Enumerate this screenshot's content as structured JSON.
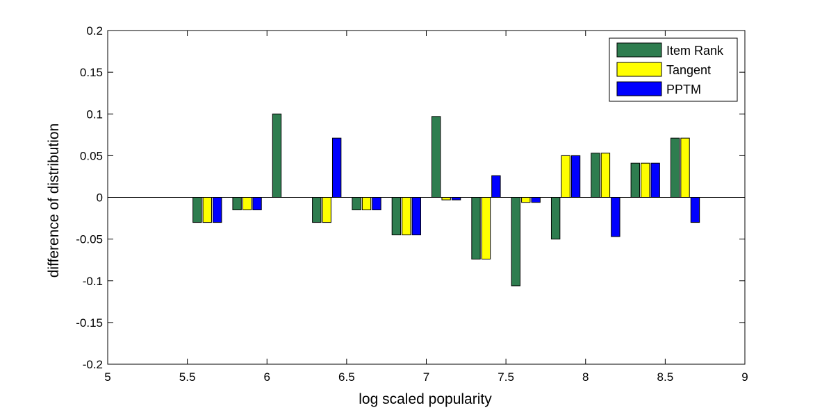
{
  "chart_data": {
    "type": "bar",
    "title": "",
    "xlabel": "log scaled popularity",
    "ylabel": "difference of distribution",
    "xlim": [
      5,
      9
    ],
    "ylim": [
      -0.2,
      0.2
    ],
    "xticks": [
      5,
      5.5,
      6,
      6.5,
      7,
      7.5,
      8,
      8.5,
      9
    ],
    "xtick_labels": [
      "5",
      "5.5",
      "6",
      "6.5",
      "7",
      "7.5",
      "8",
      "8.5",
      "9"
    ],
    "yticks": [
      -0.2,
      -0.15,
      -0.1,
      -0.05,
      0,
      0.05,
      0.1,
      0.15,
      0.2
    ],
    "ytick_labels": [
      "-0.2",
      "-0.15",
      "-0.1",
      "-0.05",
      "0",
      "0.05",
      "0.1",
      "0.15",
      "0.2"
    ],
    "grid": false,
    "legend_position": "top-right",
    "x": [
      5.625,
      5.875,
      6.125,
      6.375,
      6.625,
      6.875,
      7.125,
      7.375,
      7.625,
      7.875,
      8.125,
      8.375,
      8.625
    ],
    "series": [
      {
        "name": "Item Rank",
        "color": "#2e7d4f",
        "values": [
          -0.03,
          -0.015,
          0.1,
          -0.03,
          -0.015,
          -0.045,
          0.097,
          -0.074,
          -0.106,
          -0.05,
          0.053,
          0.041,
          0.071
        ]
      },
      {
        "name": "Tangent",
        "color": "#ffff00",
        "values": [
          -0.03,
          -0.015,
          0,
          -0.03,
          -0.015,
          -0.045,
          -0.003,
          -0.074,
          -0.006,
          0.05,
          0.053,
          0.041,
          0.071
        ]
      },
      {
        "name": "PPTM",
        "color": "#0000ff",
        "values": [
          -0.03,
          -0.015,
          0,
          0.071,
          -0.015,
          -0.045,
          -0.003,
          0.026,
          -0.006,
          0.05,
          -0.047,
          0.041,
          -0.03
        ]
      }
    ]
  }
}
